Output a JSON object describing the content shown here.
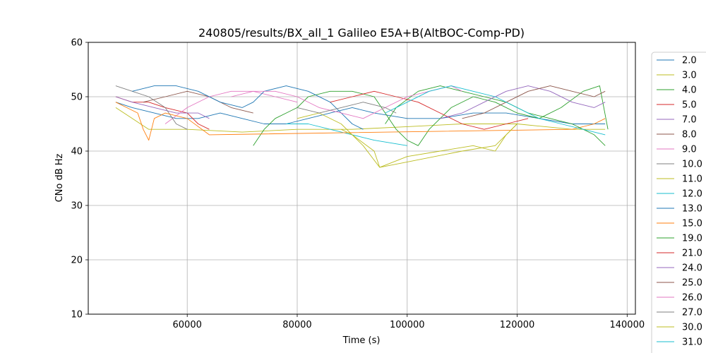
{
  "chart_data": {
    "type": "line",
    "title": "240805/results/BX_all_1 Galileo E5A+B(AltBOC-Comp-PD)",
    "xlabel": "Time (s)",
    "ylabel": "CNo dB Hz",
    "xlim": [
      42000,
      141500
    ],
    "ylim": [
      10,
      60
    ],
    "xticks": [
      60000,
      80000,
      100000,
      120000,
      140000
    ],
    "xtick_labels": [
      "60000",
      "80000",
      "100000",
      "120000",
      "140000"
    ],
    "yticks": [
      10,
      20,
      30,
      40,
      50,
      60
    ],
    "ytick_labels": [
      "10",
      "20",
      "30",
      "40",
      "50",
      "60"
    ],
    "grid": true,
    "legend_position": "right-outside",
    "series": [
      {
        "name": "2.0",
        "color": "#1f77b4",
        "points": [
          [
            47000,
            49
          ],
          [
            50000,
            48
          ],
          [
            54000,
            47
          ],
          [
            58000,
            46
          ],
          [
            62000,
            46
          ],
          [
            66000,
            47
          ],
          [
            70000,
            46
          ],
          [
            74000,
            45
          ],
          [
            78000,
            45
          ],
          [
            82000,
            46
          ],
          [
            86000,
            47
          ],
          [
            90000,
            48
          ],
          [
            94000,
            47
          ],
          [
            100000,
            46
          ],
          [
            106000,
            46
          ],
          [
            112000,
            47
          ],
          [
            118000,
            47
          ],
          [
            124000,
            46
          ],
          [
            130000,
            45
          ],
          [
            136000,
            45
          ]
        ]
      },
      {
        "name": "3.0",
        "color": "#bcbd22",
        "points": [
          [
            47000,
            48
          ],
          [
            50000,
            46
          ],
          [
            53000,
            44
          ],
          [
            60000,
            44
          ],
          [
            70000,
            43.5
          ],
          [
            80000,
            44
          ],
          [
            90000,
            44
          ],
          [
            100000,
            44.5
          ],
          [
            110000,
            45
          ],
          [
            120000,
            45
          ],
          [
            130000,
            44
          ],
          [
            136000,
            44
          ]
        ]
      },
      {
        "name": "4.0",
        "color": "#2ca02c",
        "points": [
          [
            72000,
            41
          ],
          [
            74000,
            44
          ],
          [
            76000,
            46
          ],
          [
            78000,
            47
          ],
          [
            80000,
            48
          ],
          [
            82000,
            50
          ],
          [
            86000,
            51
          ],
          [
            90000,
            51
          ],
          [
            94000,
            50
          ],
          [
            96000,
            47
          ],
          [
            98000,
            44
          ],
          [
            100000,
            42
          ],
          [
            102000,
            41
          ],
          [
            104000,
            44
          ],
          [
            108000,
            48
          ],
          [
            112000,
            50
          ],
          [
            116000,
            49
          ],
          [
            120000,
            47
          ],
          [
            124000,
            46
          ],
          [
            128000,
            48
          ],
          [
            132000,
            51
          ],
          [
            135000,
            52
          ],
          [
            136500,
            44
          ]
        ]
      },
      {
        "name": "5.0",
        "color": "#d62728",
        "points": [
          [
            47000,
            50
          ],
          [
            50000,
            49
          ],
          [
            53000,
            49
          ],
          [
            56000,
            48
          ],
          [
            60000,
            47
          ],
          [
            62000,
            45
          ],
          [
            64000,
            44
          ]
        ]
      },
      {
        "name": "7.0",
        "color": "#9467bd",
        "points": [
          [
            47000,
            50
          ],
          [
            50000,
            49
          ],
          [
            54000,
            48
          ],
          [
            58000,
            47
          ],
          [
            62000,
            47
          ],
          [
            64000,
            46
          ]
        ]
      },
      {
        "name": "8.0",
        "color": "#8c564b",
        "points": [
          [
            52000,
            49
          ],
          [
            56000,
            50
          ],
          [
            60000,
            51
          ],
          [
            64000,
            50
          ],
          [
            68000,
            48
          ],
          [
            72000,
            47
          ]
        ]
      },
      {
        "name": "9.0",
        "color": "#e377c2",
        "points": [
          [
            56000,
            45
          ],
          [
            60000,
            48
          ],
          [
            64000,
            50
          ],
          [
            68000,
            51
          ],
          [
            72000,
            51
          ],
          [
            76000,
            50
          ],
          [
            80000,
            49
          ]
        ]
      },
      {
        "name": "10.0",
        "color": "#7f7f7f",
        "points": [
          [
            47000,
            52
          ],
          [
            50000,
            51
          ],
          [
            53000,
            50
          ],
          [
            56000,
            48
          ],
          [
            58000,
            45
          ],
          [
            60000,
            44
          ]
        ]
      },
      {
        "name": "11.0",
        "color": "#bcbd22",
        "points": [
          [
            80000,
            46
          ],
          [
            84000,
            47
          ],
          [
            88000,
            45
          ],
          [
            92000,
            41
          ],
          [
            95000,
            37
          ],
          [
            100000,
            39
          ],
          [
            106000,
            40
          ],
          [
            112000,
            41
          ],
          [
            116000,
            40
          ],
          [
            118000,
            43
          ],
          [
            120000,
            45
          ]
        ]
      },
      {
        "name": "12.0",
        "color": "#17becf",
        "points": [
          [
            78000,
            45
          ],
          [
            82000,
            45
          ],
          [
            86000,
            44
          ],
          [
            90000,
            43
          ],
          [
            94000,
            42
          ],
          [
            100000,
            41
          ]
        ]
      },
      {
        "name": "13.0",
        "color": "#1f77b4",
        "points": [
          [
            50000,
            51
          ],
          [
            54000,
            52
          ],
          [
            58000,
            52
          ],
          [
            62000,
            51
          ],
          [
            66000,
            49
          ],
          [
            70000,
            48
          ],
          [
            72000,
            49
          ],
          [
            74000,
            51
          ],
          [
            78000,
            52
          ],
          [
            82000,
            51
          ],
          [
            86000,
            49
          ],
          [
            88000,
            47
          ],
          [
            90000,
            45
          ],
          [
            92000,
            44
          ]
        ]
      },
      {
        "name": "15.0",
        "color": "#ff7f0e",
        "points": [
          [
            47000,
            49
          ],
          [
            49000,
            48
          ],
          [
            51000,
            47
          ],
          [
            52000,
            44
          ],
          [
            53000,
            42
          ],
          [
            54000,
            46
          ],
          [
            56000,
            47
          ],
          [
            60000,
            46
          ],
          [
            64000,
            43
          ],
          [
            130000,
            44
          ],
          [
            134000,
            45
          ],
          [
            136000,
            46
          ]
        ]
      },
      {
        "name": "19.0",
        "color": "#2ca02c",
        "points": [
          [
            96000,
            45
          ],
          [
            98000,
            48
          ],
          [
            102000,
            51
          ],
          [
            106000,
            52
          ],
          [
            110000,
            51
          ],
          [
            114000,
            50
          ],
          [
            118000,
            49
          ],
          [
            122000,
            47
          ],
          [
            126000,
            46
          ],
          [
            130000,
            45
          ],
          [
            134000,
            43
          ],
          [
            136000,
            41
          ]
        ]
      },
      {
        "name": "21.0",
        "color": "#d62728",
        "points": [
          [
            86000,
            49
          ],
          [
            90000,
            50
          ],
          [
            94000,
            51
          ],
          [
            98000,
            50
          ],
          [
            102000,
            49
          ],
          [
            106000,
            47
          ],
          [
            110000,
            45
          ],
          [
            114000,
            44
          ],
          [
            118000,
            45
          ],
          [
            122000,
            46
          ]
        ]
      },
      {
        "name": "24.0",
        "color": "#9467bd",
        "points": [
          [
            106000,
            46
          ],
          [
            110000,
            47
          ],
          [
            114000,
            49
          ],
          [
            118000,
            51
          ],
          [
            122000,
            52
          ],
          [
            126000,
            51
          ],
          [
            130000,
            49
          ],
          [
            134000,
            48
          ],
          [
            136000,
            49
          ]
        ]
      },
      {
        "name": "25.0",
        "color": "#8c564b",
        "points": [
          [
            110000,
            46
          ],
          [
            114000,
            47
          ],
          [
            118000,
            49
          ],
          [
            122000,
            51
          ],
          [
            126000,
            52
          ],
          [
            130000,
            51
          ],
          [
            134000,
            50
          ],
          [
            136000,
            51
          ]
        ]
      },
      {
        "name": "26.0",
        "color": "#e377c2",
        "points": [
          [
            68000,
            50
          ],
          [
            72000,
            51
          ],
          [
            76000,
            51
          ],
          [
            80000,
            50
          ],
          [
            84000,
            48
          ],
          [
            88000,
            47
          ],
          [
            92000,
            46
          ],
          [
            96000,
            48
          ],
          [
            100000,
            50
          ],
          [
            104000,
            51
          ],
          [
            108000,
            52
          ],
          [
            110000,
            51
          ]
        ]
      },
      {
        "name": "27.0",
        "color": "#7f7f7f",
        "points": [
          [
            80000,
            48
          ],
          [
            84000,
            47
          ],
          [
            88000,
            48
          ],
          [
            92000,
            49
          ],
          [
            96000,
            48
          ],
          [
            98000,
            47
          ]
        ]
      },
      {
        "name": "30.0",
        "color": "#bcbd22",
        "points": [
          [
            88000,
            44
          ],
          [
            90000,
            43
          ],
          [
            94000,
            40
          ],
          [
            95000,
            37
          ],
          [
            100000,
            38
          ],
          [
            110000,
            40
          ],
          [
            116000,
            41
          ],
          [
            118000,
            43
          ],
          [
            120000,
            45
          ]
        ]
      },
      {
        "name": "31.0",
        "color": "#17becf",
        "points": [
          [
            96000,
            47
          ],
          [
            100000,
            49
          ],
          [
            104000,
            51
          ],
          [
            108000,
            52
          ],
          [
            112000,
            51
          ],
          [
            116000,
            50
          ],
          [
            120000,
            48
          ],
          [
            124000,
            46
          ],
          [
            128000,
            45
          ],
          [
            132000,
            44
          ],
          [
            136000,
            43
          ]
        ]
      }
    ]
  }
}
